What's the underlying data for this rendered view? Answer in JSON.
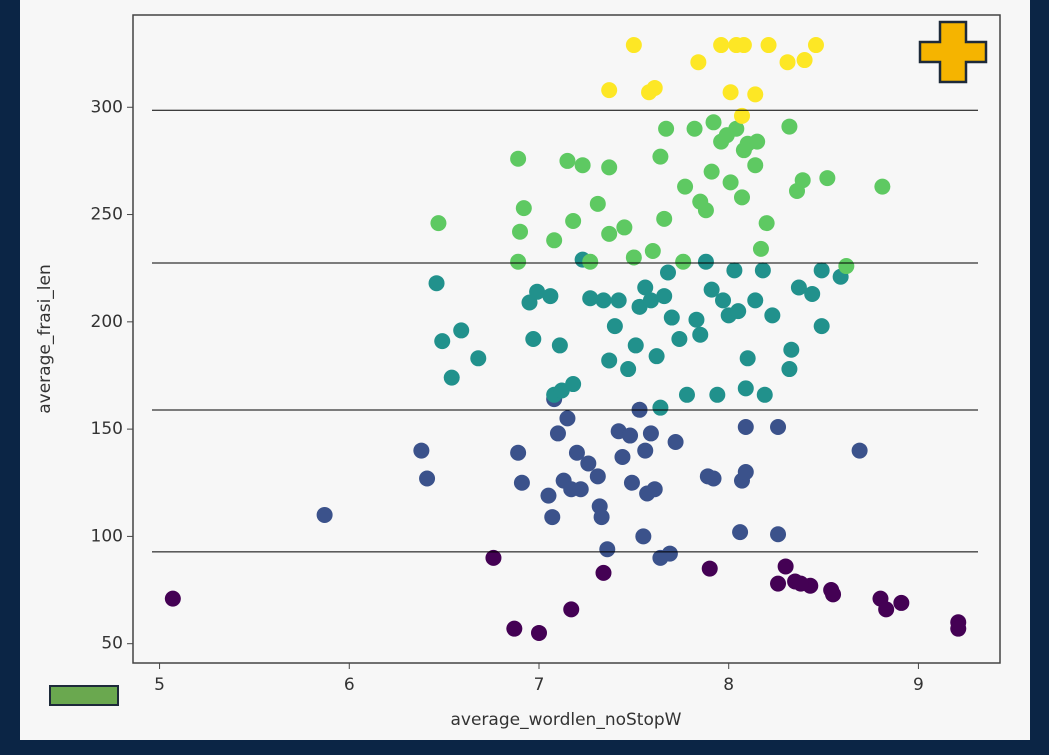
{
  "chart_data": {
    "type": "scatter",
    "xlabel": "average_wordlen_noStopW",
    "ylabel": "average_frasi_len",
    "xlim": [
      4.86,
      9.43
    ],
    "ylim": [
      41,
      343
    ],
    "xticks": [
      5,
      6,
      7,
      8,
      9
    ],
    "yticks": [
      50,
      100,
      150,
      200,
      250,
      300
    ],
    "hlines": [
      298.6,
      227.4,
      158.9,
      92.8
    ],
    "series": [
      {
        "color": "#440154",
        "x": [
          5.07,
          6.76,
          6.87,
          7.0,
          7.17,
          7.34,
          7.9,
          8.3,
          8.26,
          8.35,
          8.43,
          8.54,
          8.55,
          8.8,
          8.83,
          8.91,
          9.21,
          9.21,
          8.38
        ],
        "values": [
          71,
          90,
          57,
          55,
          66,
          83,
          85,
          86,
          78,
          79,
          77,
          75,
          73,
          71,
          66,
          69,
          60,
          57,
          78
        ]
      },
      {
        "color": "#3b528b",
        "x": [
          5.87,
          6.38,
          6.41,
          6.89,
          6.91,
          7.05,
          7.07,
          7.1,
          7.15,
          7.13,
          7.17,
          7.2,
          7.22,
          7.26,
          7.31,
          7.32,
          7.33,
          7.36,
          7.42,
          7.44,
          7.49,
          7.48,
          7.55,
          7.56,
          7.57,
          7.61,
          7.64,
          7.69,
          7.72,
          7.89,
          7.92,
          8.06,
          8.07,
          8.09,
          8.09,
          8.26,
          8.26,
          8.69,
          7.08,
          7.53,
          7.59
        ],
        "values": [
          110,
          140,
          127,
          139,
          125,
          119,
          109,
          148,
          155,
          126,
          122,
          139,
          122,
          134,
          128,
          114,
          109,
          94,
          149,
          137,
          125,
          147,
          100,
          140,
          120,
          122,
          90,
          92,
          144,
          128,
          127,
          102,
          126,
          130,
          151,
          151,
          101,
          140,
          164,
          159,
          148
        ]
      },
      {
        "color": "#21918c",
        "x": [
          6.46,
          6.49,
          6.59,
          6.54,
          6.68,
          6.95,
          6.97,
          6.99,
          7.06,
          7.11,
          7.08,
          7.12,
          7.18,
          7.23,
          7.27,
          7.34,
          7.37,
          7.4,
          7.42,
          7.47,
          7.51,
          7.53,
          7.56,
          7.59,
          7.62,
          7.66,
          7.68,
          7.7,
          7.74,
          7.78,
          7.83,
          7.88,
          7.91,
          7.94,
          7.97,
          8.0,
          8.03,
          8.05,
          8.1,
          8.14,
          8.18,
          8.19,
          8.23,
          8.32,
          8.33,
          8.37,
          8.44,
          8.49,
          8.49,
          8.59,
          8.09,
          7.64,
          7.85
        ],
        "values": [
          218,
          191,
          196,
          174,
          183,
          209,
          192,
          214,
          212,
          189,
          166,
          168,
          171,
          229,
          211,
          210,
          182,
          198,
          210,
          178,
          189,
          207,
          216,
          210,
          184,
          212,
          223,
          202,
          192,
          166,
          201,
          228,
          215,
          166,
          210,
          203,
          224,
          205,
          183,
          210,
          224,
          166,
          203,
          178,
          187,
          216,
          213,
          224,
          198,
          221,
          169,
          160,
          194
        ]
      },
      {
        "color": "#5ec962",
        "x": [
          6.47,
          6.89,
          6.92,
          6.9,
          6.89,
          7.08,
          7.15,
          7.18,
          7.23,
          7.31,
          7.37,
          7.37,
          7.45,
          7.5,
          7.6,
          7.64,
          7.66,
          7.67,
          7.76,
          7.77,
          7.85,
          7.88,
          7.82,
          7.91,
          7.92,
          7.96,
          7.99,
          8.01,
          8.04,
          8.07,
          8.08,
          8.1,
          8.15,
          8.14,
          8.17,
          8.2,
          8.32,
          8.36,
          8.39,
          8.52,
          8.81,
          8.62,
          7.27
        ],
        "values": [
          246,
          276,
          253,
          242,
          228,
          238,
          275,
          247,
          273,
          255,
          272,
          241,
          244,
          230,
          233,
          277,
          248,
          290,
          228,
          263,
          256,
          252,
          290,
          270,
          293,
          284,
          287,
          265,
          290,
          258,
          280,
          283,
          284,
          273,
          234,
          246,
          291,
          261,
          266,
          267,
          263,
          226,
          228
        ]
      },
      {
        "color": "#fde725",
        "x": [
          7.37,
          7.5,
          7.58,
          7.61,
          7.84,
          7.96,
          8.01,
          8.04,
          8.08,
          8.07,
          8.14,
          8.21,
          8.31,
          8.4,
          8.46
        ],
        "values": [
          308,
          329,
          307,
          309,
          321,
          329,
          307,
          329,
          329,
          296,
          306,
          329,
          321,
          322,
          329
        ]
      }
    ]
  }
}
